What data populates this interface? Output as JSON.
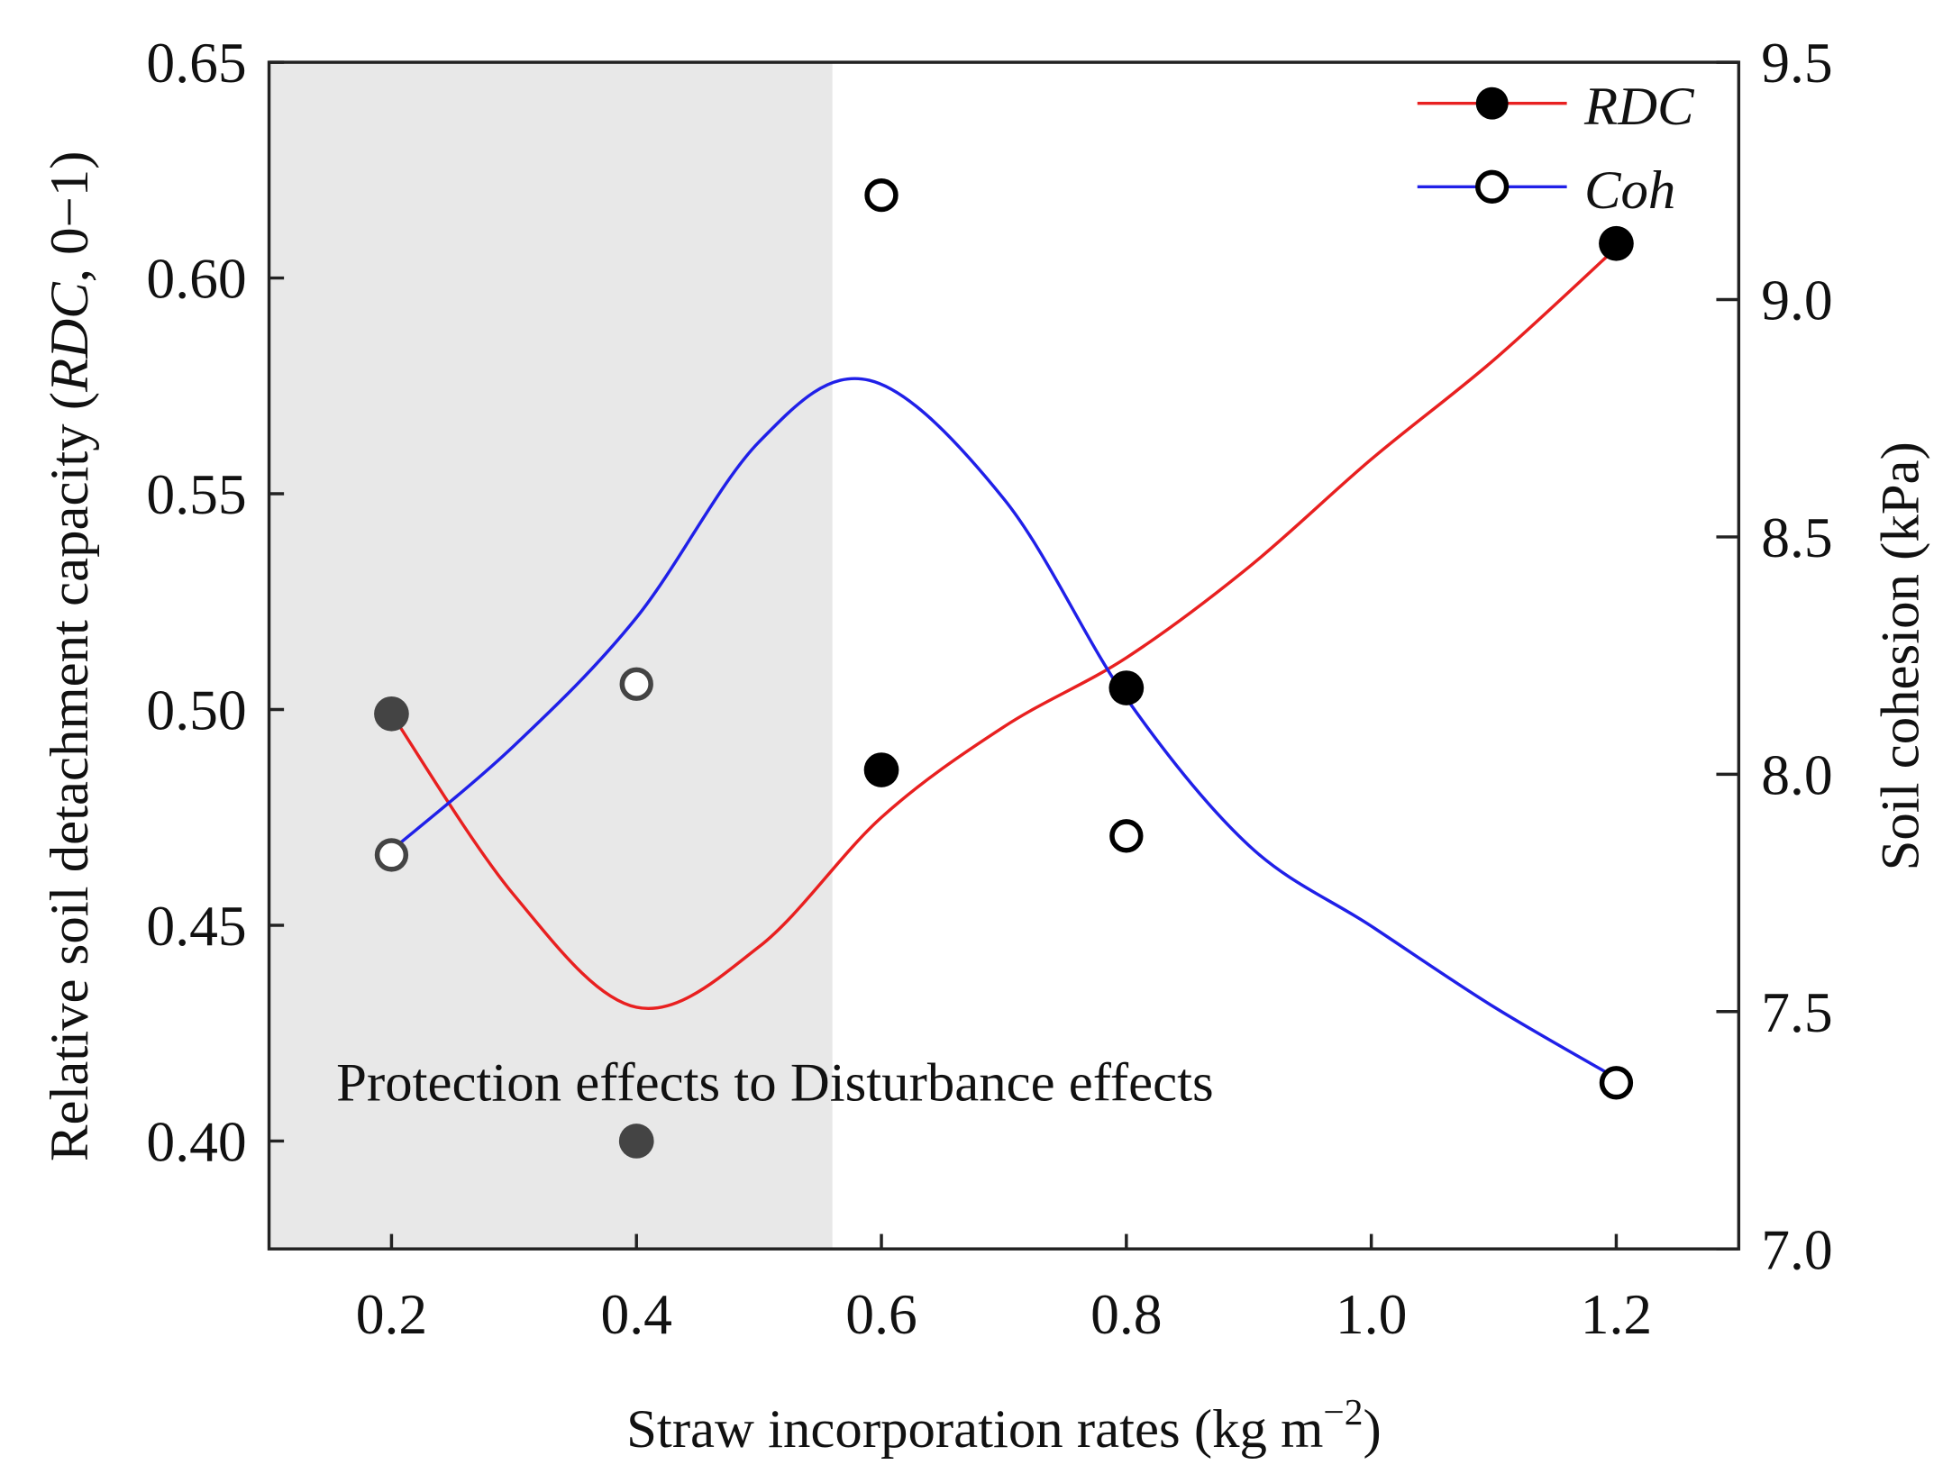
{
  "chart_data": {
    "type": "line",
    "title": "",
    "xlabel": "Straw incorporation rates (kg m",
    "xlabel_sup": "−2",
    "xlabel_end": ")",
    "ylabel_left_pre": "Relative soil detachment capacity (",
    "ylabel_left_italic": "RDC",
    "ylabel_left_post": ", 0−1)",
    "ylabel_right": "Soil cohesion (kPa)",
    "xlim": [
      0.1,
      1.3
    ],
    "ylim_left": [
      0.375,
      0.65
    ],
    "ylim_right": [
      7.0,
      9.5
    ],
    "xticks": [
      "0.2",
      "0.4",
      "0.6",
      "0.8",
      "1.0",
      "1.2"
    ],
    "yticks_left": [
      "0.40",
      "0.45",
      "0.50",
      "0.55",
      "0.60",
      "0.65"
    ],
    "yticks_right": [
      "7.0",
      "7.5",
      "8.0",
      "8.5",
      "9.0",
      "9.5"
    ],
    "shaded_region": [
      0.1,
      0.56
    ],
    "annotation": "Protection effects to Disturbance effects",
    "legend_position": "top-right",
    "series": [
      {
        "name": "RDC",
        "axis": "left",
        "color": "#e82020",
        "marker": "filled-circle",
        "points": {
          "x": [
            0.2,
            0.4,
            0.6,
            0.8,
            1.2
          ],
          "y": [
            0.499,
            0.4,
            0.486,
            0.505,
            0.608
          ]
        },
        "fit": {
          "x": [
            0.2,
            0.3,
            0.4,
            0.5,
            0.6,
            0.7,
            0.8,
            0.9,
            1.0,
            1.1,
            1.2
          ],
          "y": [
            0.499,
            0.457,
            0.431,
            0.445,
            0.475,
            0.496,
            0.512,
            0.533,
            0.558,
            0.581,
            0.607
          ]
        }
      },
      {
        "name": "Coh",
        "axis": "right",
        "color": "#2020e8",
        "marker": "open-circle",
        "points": {
          "x": [
            0.2,
            0.4,
            0.6,
            0.8,
            1.2
          ],
          "y": [
            7.83,
            8.19,
            9.22,
            7.87,
            7.35
          ]
        },
        "fit": {
          "x": [
            0.2,
            0.3,
            0.4,
            0.5,
            0.59,
            0.7,
            0.8,
            0.9,
            1.0,
            1.1,
            1.2
          ],
          "y": [
            7.84,
            8.06,
            8.33,
            8.7,
            8.83,
            8.58,
            8.16,
            7.85,
            7.68,
            7.51,
            7.36
          ]
        }
      }
    ]
  }
}
